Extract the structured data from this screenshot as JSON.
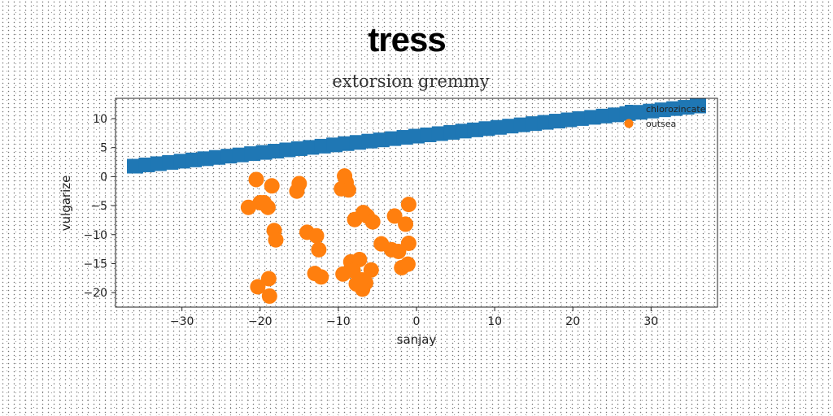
{
  "chart_data": {
    "type": "scatter",
    "title": "tress",
    "subtitle": "extorsion gremmy",
    "xlabel": "sanjay",
    "ylabel": "vulgarize",
    "xlim": [
      -38.5,
      38.5
    ],
    "ylim": [
      -22.5,
      13.5
    ],
    "xticks": [
      -30,
      -20,
      -10,
      0,
      10,
      20,
      30
    ],
    "yticks": [
      10,
      5,
      0,
      -5,
      -10,
      -15,
      -20
    ],
    "grid": false,
    "legend": {
      "position": "top-right",
      "entries": [
        "chlorozincate",
        "outsea"
      ]
    },
    "series": [
      {
        "name": "chlorozincate",
        "marker": "square",
        "color": "#1f77b4",
        "x": [
          -36,
          -34.5,
          -33,
          -31.5,
          -30,
          -28.5,
          -27,
          -25.5,
          -24,
          -22.5,
          -21,
          -19.5,
          -18,
          -16.5,
          -15,
          -13.5,
          -12,
          -10.5,
          -9,
          -7.5,
          -6,
          -4.5,
          -3,
          -1.5,
          0,
          1.5,
          3,
          4.5,
          6,
          7.5,
          9,
          10.5,
          12,
          13.5,
          15,
          16.5,
          18,
          19.5,
          21,
          22.5,
          24,
          25.5,
          27,
          28.5,
          30,
          31.5,
          33,
          34.5,
          36
        ],
        "y": [
          1.8,
          2.02,
          2.23,
          2.45,
          2.66,
          2.88,
          3.09,
          3.31,
          3.53,
          3.74,
          3.96,
          4.17,
          4.39,
          4.61,
          4.82,
          5.04,
          5.25,
          5.47,
          5.69,
          5.9,
          6.12,
          6.33,
          6.55,
          6.77,
          6.98,
          7.2,
          7.41,
          7.63,
          7.85,
          8.06,
          8.28,
          8.49,
          8.71,
          8.93,
          9.14,
          9.36,
          9.57,
          9.79,
          10.01,
          10.22,
          10.44,
          10.65,
          10.87,
          11.09,
          11.3,
          11.52,
          11.73,
          11.95,
          12.17
        ]
      },
      {
        "name": "outsea",
        "marker": "circle",
        "color": "#ff7f0e",
        "x": [
          -20.5,
          -19.5,
          -18.5,
          -15,
          -15.3,
          -9,
          -9.6,
          -9.2,
          -8.7,
          -1,
          -21.5,
          -20,
          -19,
          -6.8,
          -6.3,
          -5.6,
          -7.9,
          -2.8,
          -1.4,
          -18.2,
          -18,
          -14,
          -12.8,
          -12.5,
          -1,
          -4.5,
          -3.2,
          -2.3,
          -13,
          -12.2,
          -8.4,
          -7.3,
          -5.8,
          -1.9,
          -1.1,
          -9.4,
          -8.1,
          -7,
          -6.5,
          -6.9,
          -7.7,
          -18.9,
          -20.3,
          -18.8
        ],
        "y": [
          -0.5,
          -4.5,
          -1.6,
          -1.2,
          -2.5,
          -1,
          -2.1,
          0.1,
          -2.3,
          -4.8,
          -5.3,
          -4.5,
          -5.3,
          -6.2,
          -6.8,
          -7.8,
          -7.4,
          -6.8,
          -8.2,
          -9.3,
          -10.9,
          -9.6,
          -10.2,
          -12.6,
          -11.5,
          -11.6,
          -12.6,
          -12.9,
          -16.7,
          -17.3,
          -14.7,
          -14.3,
          -16.1,
          -15.7,
          -15.1,
          -16.8,
          -16.2,
          -17.8,
          -18.3,
          -19.4,
          -18.5,
          -17.6,
          -19,
          -20.6
        ]
      }
    ]
  }
}
